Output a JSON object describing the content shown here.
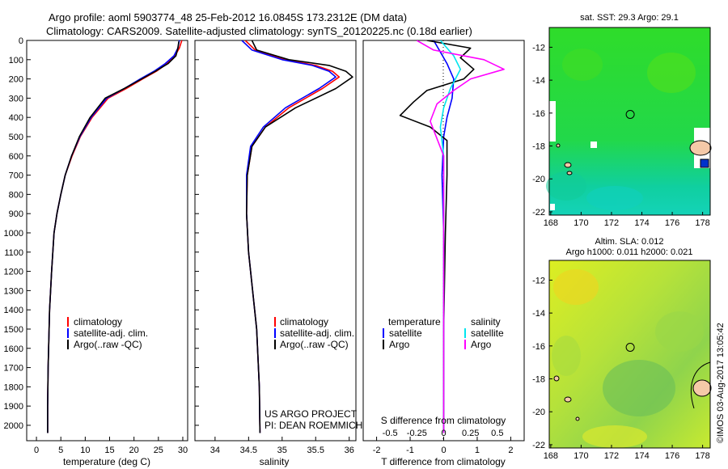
{
  "title_line1": "Argo profile: aoml 5903774_48 25-Feb-2012 16.0845S 173.2312E (DM data)",
  "title_line2": "Climatology: CARS2009. Satellite-adjusted climatology: synTS_20120225.nc (0.18d earlier)",
  "credit": "US ARGO PROJECT",
  "pi": "PI: DEAN ROEMMICH",
  "footer": "©IMOS 03-Aug-2017 13:05:42",
  "colors": {
    "clim": "#ff0000",
    "sat": "#0000ff",
    "argo": "#000000",
    "sal_sat": "#00e5ee",
    "sal_argo": "#ff00ff",
    "sea_green": "#22dd33",
    "sea_yellow": "#ccee33",
    "land": "#f5c9a8"
  },
  "chart_data": [
    {
      "type": "line",
      "id": "temperature",
      "xlabel": "temperature (deg C)",
      "xlim": [
        -2,
        31
      ],
      "ylim": [
        2080,
        0
      ],
      "xticks": [
        "0",
        "5",
        "10",
        "15",
        "20",
        "25",
        "30"
      ],
      "xtick_values": [
        0,
        5,
        10,
        15,
        20,
        25,
        30
      ],
      "yticks": [
        "0",
        "100",
        "200",
        "300",
        "400",
        "500",
        "600",
        "700",
        "800",
        "900",
        "1000",
        "1100",
        "1200",
        "1300",
        "1400",
        "1500",
        "1600",
        "1700",
        "1800",
        "1900",
        "2000"
      ],
      "ytick_values": [
        0,
        100,
        200,
        300,
        400,
        500,
        600,
        700,
        800,
        900,
        1000,
        1100,
        1200,
        1300,
        1400,
        1500,
        1600,
        1700,
        1800,
        1900,
        2000
      ],
      "legend": [
        "climatology",
        "satellite-adj. clim.",
        "Argo(..raw -QC)"
      ],
      "series": [
        {
          "name": "climatology",
          "color": "#ff0000",
          "x": [
            29.8,
            29.3,
            28.4,
            26.8,
            24.6,
            21.8,
            18.4,
            14.7,
            11.4,
            9.0,
            7.3,
            5.9,
            5.0,
            4.2,
            3.6,
            3.1,
            2.7,
            2.4,
            2.3,
            2.3
          ],
          "y": [
            0,
            40,
            80,
            120,
            160,
            200,
            250,
            300,
            400,
            500,
            600,
            700,
            800,
            900,
            1000,
            1200,
            1400,
            1700,
            1900,
            2040
          ]
        },
        {
          "name": "satellite-adj. clim.",
          "color": "#0000ff",
          "x": [
            29.3,
            29.0,
            28.2,
            26.4,
            24.1,
            21.3,
            18.0,
            14.4,
            11.2,
            8.9,
            7.2,
            5.9,
            5.0,
            4.2,
            3.6,
            3.1,
            2.7,
            2.4,
            2.3,
            2.3
          ],
          "y": [
            0,
            40,
            80,
            120,
            160,
            200,
            250,
            300,
            400,
            500,
            600,
            700,
            800,
            900,
            1000,
            1200,
            1400,
            1700,
            1900,
            2040
          ]
        },
        {
          "name": "Argo(..raw -QC)",
          "color": "#000000",
          "x": [
            29.2,
            29.0,
            28.6,
            27.0,
            24.4,
            21.6,
            18.0,
            14.1,
            11.0,
            8.8,
            7.2,
            5.9,
            5.0,
            4.2,
            3.6,
            3.1,
            2.7,
            2.4,
            2.3,
            2.3
          ],
          "y": [
            5,
            40,
            80,
            120,
            160,
            200,
            250,
            300,
            400,
            500,
            600,
            700,
            800,
            900,
            1000,
            1200,
            1400,
            1700,
            1900,
            2040
          ]
        }
      ]
    },
    {
      "type": "line",
      "id": "salinity",
      "xlabel": "salinity",
      "xlim": [
        33.7,
        36.1
      ],
      "ylim": [
        2080,
        0
      ],
      "xticks": [
        "34",
        "34.5",
        "35",
        "35.5",
        "36"
      ],
      "xtick_values": [
        34,
        34.5,
        35,
        35.5,
        36
      ],
      "legend": [
        "climatology",
        "satellite-adj. clim.",
        "Argo(..raw -QC)"
      ],
      "series": [
        {
          "name": "climatology",
          "color": "#ff0000",
          "x": [
            34.45,
            34.6,
            35.05,
            35.5,
            35.75,
            35.85,
            35.6,
            35.1,
            34.75,
            34.55,
            34.48,
            34.47,
            34.5,
            34.56,
            34.62,
            34.66,
            34.67
          ],
          "y": [
            0,
            50,
            100,
            130,
            160,
            190,
            250,
            350,
            450,
            550,
            700,
            900,
            1100,
            1300,
            1500,
            1800,
            2040
          ]
        },
        {
          "name": "satellite-adj. clim.",
          "color": "#0000ff",
          "x": [
            34.4,
            34.55,
            35.0,
            35.45,
            35.7,
            35.8,
            35.55,
            35.05,
            34.72,
            34.53,
            34.47,
            34.47,
            34.5,
            34.56,
            34.62,
            34.66,
            34.67
          ],
          "y": [
            0,
            50,
            100,
            130,
            160,
            190,
            250,
            350,
            450,
            550,
            700,
            900,
            1100,
            1300,
            1500,
            1800,
            2040
          ]
        },
        {
          "name": "Argo(..raw -QC)",
          "color": "#000000",
          "x": [
            34.55,
            34.62,
            35.1,
            35.7,
            35.95,
            36.05,
            35.8,
            35.2,
            34.75,
            34.55,
            34.48,
            34.47,
            34.5,
            34.56,
            34.62,
            34.66,
            34.67
          ],
          "y": [
            0,
            50,
            100,
            130,
            160,
            190,
            250,
            350,
            450,
            550,
            700,
            900,
            1100,
            1300,
            1500,
            1800,
            2040
          ]
        }
      ]
    },
    {
      "type": "line",
      "id": "difference",
      "xlabel": "T difference from climatology",
      "xlabel2": "S difference from climatology",
      "xlim": [
        -2.4,
        2.4
      ],
      "ylim": [
        2080,
        0
      ],
      "xticks": [
        "-2",
        "-1",
        "0",
        "1",
        "2"
      ],
      "xtick_values": [
        -2,
        -1,
        0,
        1,
        2
      ],
      "sticks": [
        "-0.5",
        "-0.25",
        "0",
        "0.25",
        "0.5"
      ],
      "stick_values": [
        -0.5,
        -0.25,
        0,
        0.25,
        0.5
      ],
      "legend_titles": [
        "temperature",
        "salinity"
      ],
      "legend_t": [
        "satellite",
        "Argo"
      ],
      "legend_s": [
        "satellite",
        "Argo"
      ],
      "series": [
        {
          "name": "T satellite",
          "color": "#0000ff",
          "x": [
            -0.3,
            -0.1,
            0.1,
            0.3,
            0.25,
            0.1,
            0.0,
            -0.05,
            0.0,
            0.0,
            0.0
          ],
          "y": [
            0,
            60,
            120,
            200,
            300,
            400,
            500,
            700,
            1000,
            1500,
            2040
          ]
        },
        {
          "name": "T Argo",
          "color": "#000000",
          "x": [
            -0.5,
            0.8,
            0.5,
            0.9,
            0.6,
            -0.5,
            -0.9,
            -1.3,
            -0.4,
            0.1,
            0.1,
            0.05,
            0.0,
            0.0
          ],
          "y": [
            0,
            40,
            90,
            150,
            200,
            260,
            320,
            390,
            450,
            520,
            700,
            1000,
            1500,
            2040
          ]
        },
        {
          "name": "S satellite",
          "color": "#00e5ee",
          "x": [
            -0.1,
            0.3,
            0.5,
            0.2,
            0.0,
            -0.1,
            0.0,
            0.0,
            0.0
          ],
          "y": [
            0,
            80,
            150,
            250,
            350,
            450,
            600,
            1000,
            2040
          ]
        },
        {
          "name": "S Argo",
          "color": "#ff00ff",
          "x": [
            -0.8,
            -0.3,
            1.2,
            1.8,
            0.8,
            0.3,
            -0.2,
            -0.4,
            0.0,
            0.0,
            0.0
          ],
          "y": [
            0,
            50,
            100,
            150,
            200,
            260,
            330,
            420,
            600,
            1000,
            2040
          ]
        }
      ]
    },
    {
      "type": "heatmap",
      "id": "sst_map",
      "title": "sat. SST: 29.3  Argo: 29.1",
      "xticks": [
        "168",
        "170",
        "172",
        "174",
        "176",
        "178"
      ],
      "xtick_values": [
        168,
        170,
        172,
        174,
        176,
        178
      ],
      "yticks": [
        "-12",
        "-14",
        "-16",
        "-18",
        "-20",
        "-22"
      ],
      "ytick_values": [
        -12,
        -14,
        -16,
        -18,
        -20,
        -22
      ],
      "xlim": [
        167.9,
        178.5
      ],
      "ylim": [
        -22.2,
        -10.8
      ],
      "marker": [
        173.23,
        -16.08
      ]
    },
    {
      "type": "heatmap",
      "id": "sla_map",
      "title": "Altim. SLA: 0.012",
      "subtitle": "Argo h1000: 0.011  h2000: 0.021",
      "xticks": [
        "168",
        "170",
        "172",
        "174",
        "176",
        "178"
      ],
      "xtick_values": [
        168,
        170,
        172,
        174,
        176,
        178
      ],
      "yticks": [
        "-12",
        "-14",
        "-16",
        "-18",
        "-20",
        "-22"
      ],
      "ytick_values": [
        -12,
        -14,
        -16,
        -18,
        -20,
        -22
      ],
      "xlim": [
        167.9,
        178.5
      ],
      "ylim": [
        -22.2,
        -10.8
      ],
      "marker": [
        173.23,
        -16.08
      ]
    }
  ]
}
